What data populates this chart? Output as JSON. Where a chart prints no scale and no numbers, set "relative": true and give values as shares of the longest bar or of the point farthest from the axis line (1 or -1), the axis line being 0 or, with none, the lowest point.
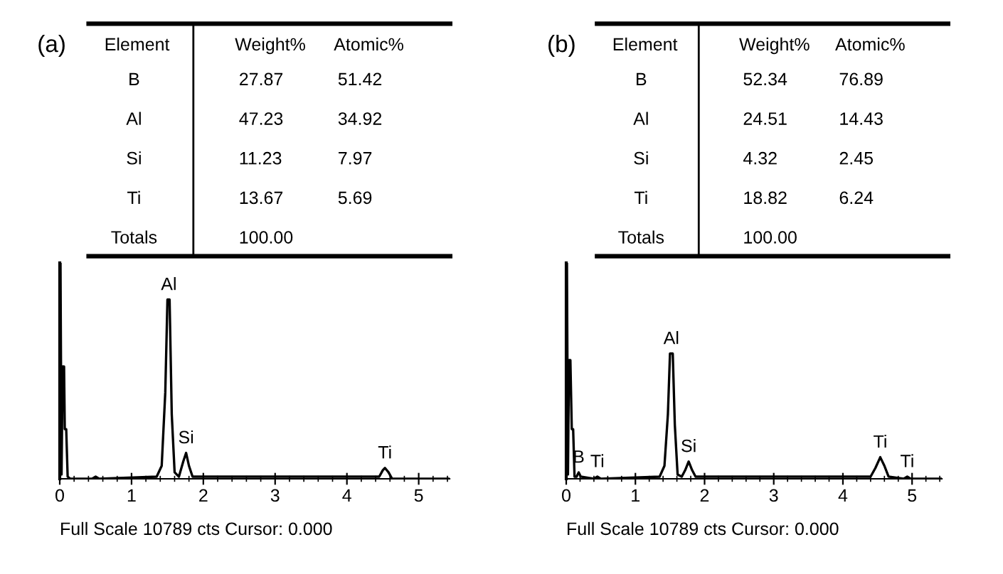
{
  "chart_data": [
    {
      "type": "other",
      "title": "(a)",
      "categories": [
        "Element",
        "Weight%",
        "Atomic%"
      ],
      "y_categories": [
        "B",
        "Al",
        "Si",
        "Ti",
        "Totals"
      ],
      "cell_labels": [
        [
          "27.87",
          "51.42"
        ],
        [
          "47.23",
          "34.92"
        ],
        [
          "11.23",
          "7.97"
        ],
        [
          "13.67",
          "5.69"
        ],
        [
          "100.00",
          null
        ]
      ]
    },
    {
      "type": "line",
      "relative": true,
      "color": "#000000",
      "xlim": [
        0,
        5.43
      ],
      "xticks": [
        0,
        1,
        2,
        3,
        4,
        5
      ],
      "tick_labels": "x",
      "x": [
        0,
        0.01,
        0.025,
        0.04,
        0.06,
        0.07,
        0.09,
        0.11,
        0.15,
        0.45,
        0.5,
        0.55,
        1.35,
        1.42,
        1.47,
        1.5,
        1.53,
        1.56,
        1.6,
        1.66,
        1.72,
        1.76,
        1.8,
        1.85,
        4.45,
        4.5,
        4.53,
        4.58,
        4.63,
        5.43
      ],
      "values": [
        0,
        1,
        0.02,
        0.52,
        0.52,
        0.23,
        0.23,
        0.01,
        0,
        0,
        0.01,
        0,
        0.01,
        0.06,
        0.4,
        0.83,
        0.83,
        0.3,
        0.03,
        0.01,
        0.08,
        0.12,
        0.06,
        0.01,
        0.01,
        0.04,
        0.05,
        0.03,
        0,
        0
      ],
      "annotations": [
        {
          "text": "Al",
          "x": 1.52,
          "y": 0.83
        },
        {
          "text": "Si",
          "x": 1.76,
          "y": 0.12
        },
        {
          "text": "Ti",
          "x": 4.53,
          "y": 0.05
        },
        "Full Scale 10789 cts Cursor: 0.000"
      ]
    },
    {
      "type": "other",
      "title": "(b)",
      "categories": [
        "Element",
        "Weight%",
        "Atomic%"
      ],
      "y_categories": [
        "B",
        "Al",
        "Si",
        "Ti",
        "Totals"
      ],
      "cell_labels": [
        [
          "52.34",
          "76.89"
        ],
        [
          "24.51",
          "14.43"
        ],
        [
          "4.32",
          "2.45"
        ],
        [
          "18.82",
          "6.24"
        ],
        [
          "100.00",
          null
        ]
      ]
    },
    {
      "type": "line",
      "relative": true,
      "color": "#000000",
      "xlim": [
        0,
        5.43
      ],
      "xticks": [
        0,
        1,
        2,
        3,
        4,
        5
      ],
      "tick_labels": "x",
      "x": [
        0,
        0.01,
        0.025,
        0.04,
        0.06,
        0.08,
        0.1,
        0.12,
        0.15,
        0.18,
        0.21,
        0.4,
        0.45,
        0.5,
        1.35,
        1.42,
        1.47,
        1.5,
        1.54,
        1.57,
        1.61,
        1.67,
        1.72,
        1.77,
        1.82,
        1.87,
        4.4,
        4.47,
        4.54,
        4.6,
        4.66,
        4.88,
        4.93,
        4.98,
        5.43
      ],
      "values": [
        0,
        1,
        0.02,
        0.55,
        0.55,
        0.23,
        0.23,
        0.01,
        0.01,
        0.03,
        0.01,
        0,
        0.01,
        0,
        0.01,
        0.06,
        0.3,
        0.58,
        0.58,
        0.25,
        0.02,
        0.01,
        0.04,
        0.08,
        0.04,
        0.01,
        0.01,
        0.05,
        0.1,
        0.06,
        0.01,
        0,
        0.01,
        0,
        0
      ],
      "annotations": [
        {
          "text": "B",
          "x": 0.18,
          "y": 0.03
        },
        {
          "text": "Ti",
          "x": 0.45,
          "y": 0.01
        },
        {
          "text": "Al",
          "x": 1.52,
          "y": 0.58
        },
        {
          "text": "Si",
          "x": 1.77,
          "y": 0.08
        },
        {
          "text": "Ti",
          "x": 4.54,
          "y": 0.1
        },
        {
          "text": "Ti",
          "x": 4.93,
          "y": 0.01
        },
        "Full Scale 10789 cts Cursor: 0.000"
      ]
    }
  ]
}
